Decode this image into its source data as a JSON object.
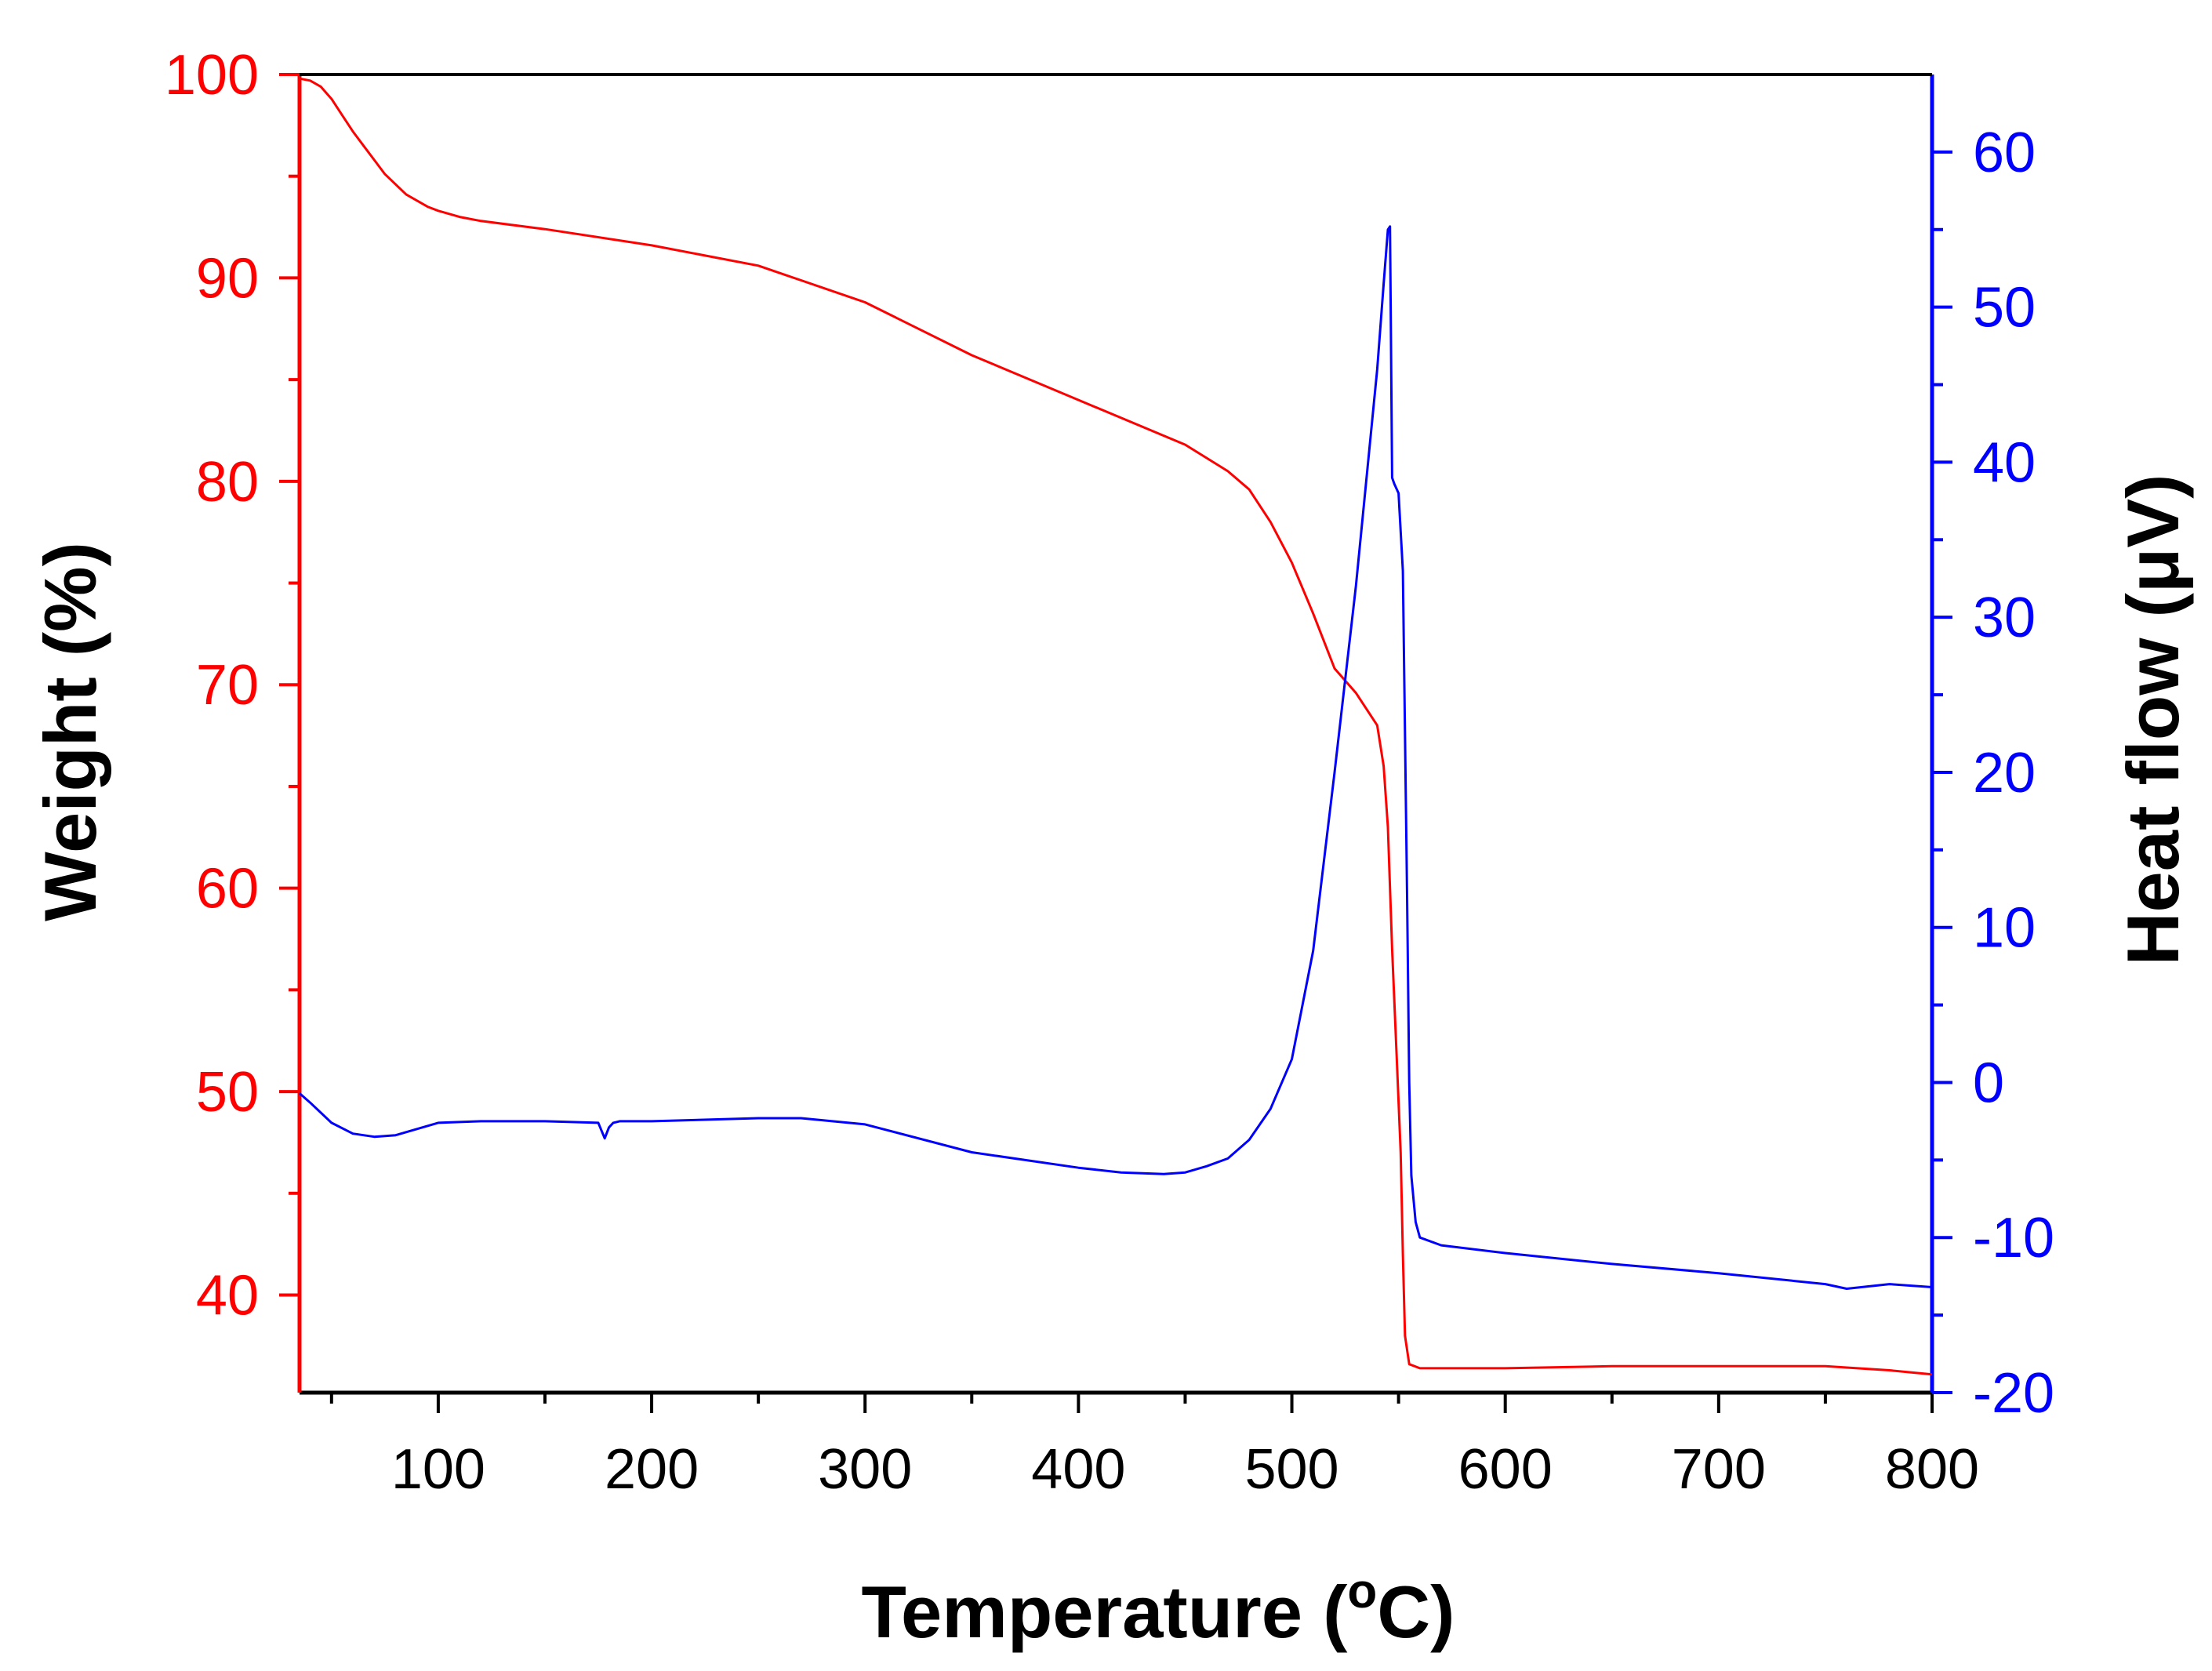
{
  "chart_data": {
    "type": "line",
    "xlabel": "Temperature (°C)",
    "xlabel_parts": {
      "main": "Temperature (",
      "sup": "o",
      "tail": "C)"
    },
    "ylabel_left": "Weight (%)",
    "ylabel_right": "Heat flow (μV)",
    "xlim": [
      35,
      800
    ],
    "x_ticks": [
      100,
      200,
      300,
      400,
      500,
      600,
      700,
      800
    ],
    "x_tick_labels": [
      "100",
      "200",
      "300",
      "400",
      "500",
      "600",
      "700",
      "800"
    ],
    "x_minor_ticks": [
      50,
      150,
      250,
      350,
      450,
      550,
      650,
      750
    ],
    "ylim_left": [
      35.2,
      100
    ],
    "y_left_ticks": [
      40,
      50,
      60,
      70,
      80,
      90,
      100
    ],
    "y_left_tick_labels": [
      "40",
      "50",
      "60",
      "70",
      "80",
      "90",
      "100"
    ],
    "y_left_minor_ticks": [
      45,
      55,
      65,
      75,
      85,
      95
    ],
    "ylim_right": [
      -20,
      65
    ],
    "y_right_ticks": [
      -20,
      -10,
      0,
      10,
      20,
      30,
      40,
      50,
      60
    ],
    "y_right_tick_labels": [
      "-20",
      "-10",
      "0",
      "10",
      "20",
      "30",
      "40",
      "50",
      "60"
    ],
    "y_right_minor_ticks": [
      -15,
      -5,
      5,
      15,
      25,
      35,
      45,
      55
    ],
    "colors": {
      "weight": "#ff0000",
      "heat_flow": "#0000ff",
      "frame": "#000000"
    },
    "series": [
      {
        "name": "Weight",
        "axis": "left",
        "color": "#ff0000",
        "x": [
          35,
          40,
          45,
          50,
          55,
          60,
          65,
          70,
          75,
          80,
          85,
          90,
          95,
          100,
          110,
          120,
          150,
          200,
          250,
          300,
          350,
          400,
          450,
          470,
          480,
          490,
          500,
          510,
          520,
          530,
          540,
          543,
          545,
          547,
          549,
          551,
          552,
          553,
          555,
          560,
          600,
          650,
          700,
          750,
          780,
          800
        ],
        "y": [
          99.8,
          99.7,
          99.4,
          98.8,
          98.0,
          97.2,
          96.5,
          95.8,
          95.1,
          94.6,
          94.1,
          93.8,
          93.5,
          93.3,
          93.0,
          92.8,
          92.4,
          91.6,
          90.6,
          88.8,
          86.2,
          84.0,
          81.8,
          80.5,
          79.6,
          78.0,
          76.0,
          73.5,
          70.8,
          69.6,
          68.0,
          66.0,
          63.0,
          57.0,
          52.0,
          47.0,
          42.0,
          38.0,
          36.6,
          36.4,
          36.4,
          36.5,
          36.5,
          36.5,
          36.3,
          36.1
        ]
      },
      {
        "name": "Heat flow",
        "axis": "right",
        "color": "#0000ff",
        "x": [
          35,
          40,
          50,
          60,
          70,
          80,
          90,
          100,
          120,
          150,
          175,
          178,
          180,
          182,
          185,
          200,
          250,
          270,
          300,
          350,
          400,
          420,
          440,
          450,
          460,
          470,
          480,
          490,
          500,
          510,
          520,
          530,
          540,
          543,
          545,
          546,
          547,
          548,
          550,
          552,
          554,
          555,
          556,
          558,
          560,
          570,
          600,
          650,
          700,
          750,
          760,
          780,
          800
        ],
        "y": [
          -0.7,
          -1.3,
          -2.6,
          -3.3,
          -3.5,
          -3.4,
          -3.0,
          -2.6,
          -2.5,
          -2.5,
          -2.6,
          -3.6,
          -2.9,
          -2.6,
          -2.5,
          -2.5,
          -2.3,
          -2.3,
          -2.7,
          -4.5,
          -5.5,
          -5.8,
          -5.9,
          -5.8,
          -5.4,
          -4.9,
          -3.7,
          -1.7,
          1.5,
          8.5,
          20.0,
          32.0,
          46.0,
          51.5,
          55.0,
          55.2,
          39.0,
          38.6,
          38.0,
          33.0,
          12.0,
          0.0,
          -6.0,
          -9.0,
          -10.0,
          -10.5,
          -11.0,
          -11.7,
          -12.3,
          -13.0,
          -13.3,
          -13.0,
          -13.2
        ]
      }
    ]
  }
}
